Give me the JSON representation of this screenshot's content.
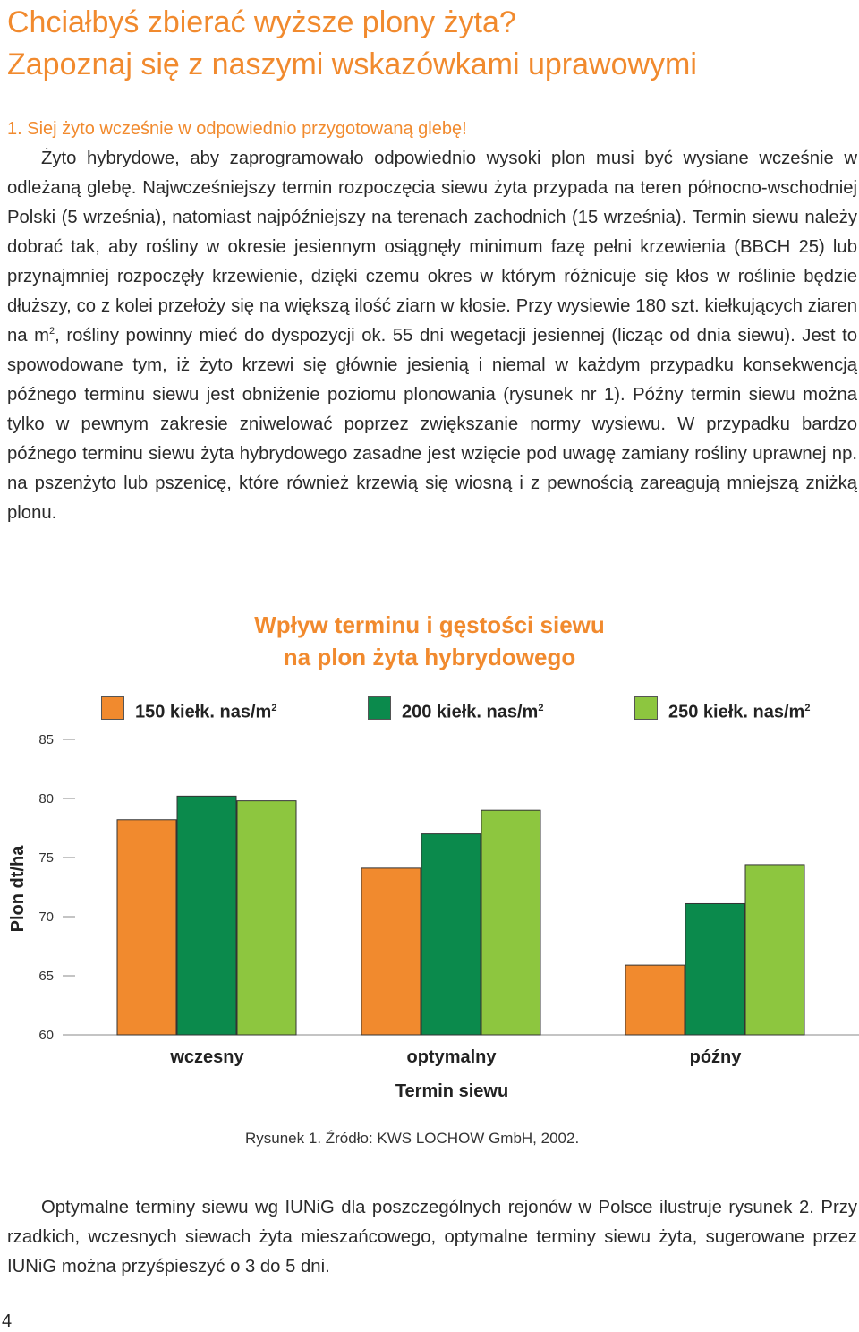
{
  "title": {
    "line1": "Chciałbyś zbierać wyższe plony żyta?",
    "line2": "Zapoznaj się z naszymi wskazówkami uprawowymi"
  },
  "section1": {
    "heading": "1. Siej żyto wcześnie w odpowiednio przygotowaną glebę!",
    "para_part1": "Żyto hybrydowe, aby zaprogramowało odpowiednio wysoki plon musi być wysiane wcześnie w odleżaną glebę. Najwcześniejszy termin rozpoczęcia siewu żyta przypada na teren północno-wschodniej Polski (5 września), natomiast najpóźniejszy na terenach zachodnich (15 września). Termin siewu należy dobrać tak, aby rośliny w okresie jesiennym osiągnęły minimum fazę pełni krzewienia (BBCH 25) lub przynajmniej rozpoczęły krzewienie, dzięki czemu okres w którym różnicuje się kłos w roślinie będzie dłuższy, co z kolei przełoży się na większą ilość ziarn w kłosie. Przy wysiewie 180 szt. kiełkujących ziaren na m",
    "para_sup": "2",
    "para_part2": ", rośliny powinny mieć do dyspozycji ok. 55 dni wegetacji jesiennej (licząc od dnia siewu). Jest to spowodowane tym, iż żyto krzewi się głównie jesienią i niemal w każdym przypadku konsekwencją późnego terminu siewu jest obniżenie poziomu plonowania (rysunek nr 1). Późny termin siewu można tylko w pewnym zakresie zniwelować poprzez zwiększanie normy wysiewu. W przypadku bardzo późnego terminu siewu żyta hybrydowego zasadne jest wzięcie pod uwagę zamiany rośliny uprawnej np. na pszenżyto lub pszenicę, które również krzewią się wiosną i z pewnością zareagują mniejszą zniżką plonu."
  },
  "chart_data": {
    "type": "bar",
    "title_line1": "Wpływ terminu i gęstości siewu",
    "title_line2": "na plon żyta hybrydowego",
    "xlabel": "Termin siewu",
    "ylabel": "Plon dt/ha",
    "categories": [
      "wczesny",
      "optymalny",
      "późny"
    ],
    "yticks": [
      "85",
      "80",
      "75",
      "70",
      "65",
      "60"
    ],
    "ylim": [
      60,
      85
    ],
    "series": [
      {
        "name": "150 kiełk. nas/m",
        "sup": "2",
        "color": "#f18a2e",
        "values": [
          78.2,
          74.1,
          65.9
        ]
      },
      {
        "name": "200 kiełk. nas/m",
        "sup": "2",
        "color": "#0b8a4c",
        "values": [
          80.2,
          77.0,
          71.1
        ]
      },
      {
        "name": "250 kiełk. nas/m",
        "sup": "2",
        "color": "#8dc63f",
        "values": [
          79.8,
          79.0,
          74.4
        ]
      }
    ],
    "grid": false,
    "legend_position": "top"
  },
  "caption": "Rysunek 1. Źródło: KWS LOCHOW GmbH, 2002.",
  "section2": {
    "para": "Optymalne terminy siewu wg IUNiG dla poszczególnych rejonów w Polsce ilustruje rysunek 2. Przy rzadkich, wczesnych siewach żyta mieszańcowego, optymalne terminy siewu żyta, sugerowane przez IUNiG można przyśpieszyć o 3 do 5 dni."
  },
  "page_number": "4"
}
